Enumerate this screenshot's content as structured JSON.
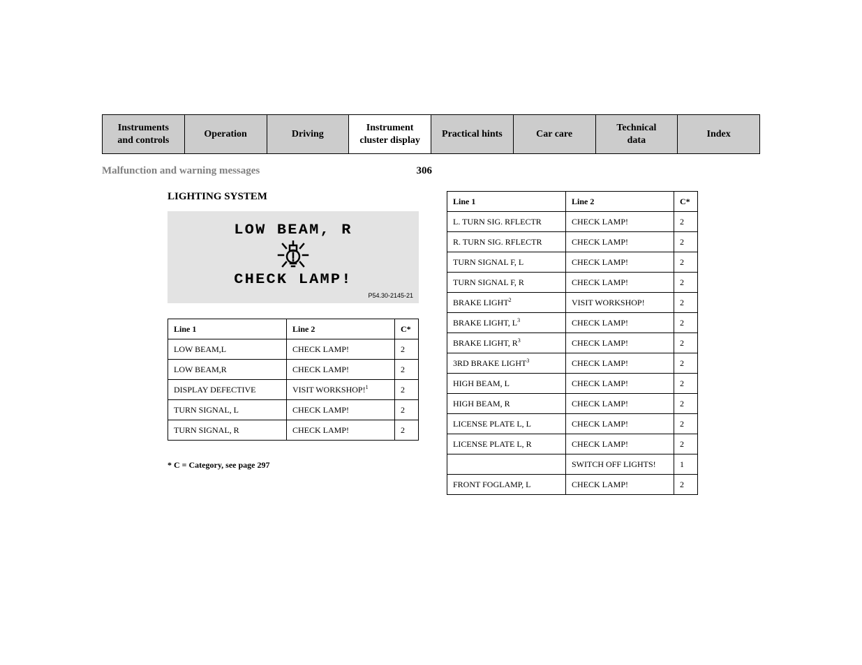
{
  "tabs": [
    {
      "label": "Instruments\nand controls",
      "active": false
    },
    {
      "label": "Operation",
      "active": false
    },
    {
      "label": "Driving",
      "active": false
    },
    {
      "label": "Instrument\ncluster display",
      "active": true
    },
    {
      "label": "Practical hints",
      "active": false
    },
    {
      "label": "Car care",
      "active": false
    },
    {
      "label": "Technical\ndata",
      "active": false
    },
    {
      "label": "Index",
      "active": false
    }
  ],
  "breadcrumb": "Malfunction and warning messages",
  "page_number": "306",
  "section_title": "LIGHTING SYSTEM",
  "display": {
    "line1": "LOW BEAM, R",
    "line2": "CHECK LAMP!",
    "code": "P54.30-2145-21"
  },
  "left_table": {
    "headers": [
      "Line 1",
      "Line 2",
      "C*"
    ],
    "rows": [
      {
        "l1": "LOW BEAM,L",
        "l2": "CHECK LAMP!",
        "sup": "",
        "c": "2"
      },
      {
        "l1": "LOW BEAM,R",
        "l2": "CHECK LAMP!",
        "sup": "",
        "c": "2"
      },
      {
        "l1": "DISPLAY DEFECTIVE",
        "l2": "VISIT WORKSHOP!",
        "sup": "1",
        "c": "2"
      },
      {
        "l1": "TURN SIGNAL, L",
        "l2": "CHECK LAMP!",
        "sup": "",
        "c": "2"
      },
      {
        "l1": "TURN SIGNAL, R",
        "l2": "CHECK LAMP!",
        "sup": "",
        "c": "2"
      }
    ]
  },
  "right_table": {
    "headers": [
      "Line 1",
      "Line 2",
      "C*"
    ],
    "rows": [
      {
        "l1": "L. TURN SIG. RFLECTR",
        "l1sup": "",
        "l2": "CHECK LAMP!",
        "sup": "",
        "c": "2"
      },
      {
        "l1": "R. TURN SIG. RFLECTR",
        "l1sup": "",
        "l2": "CHECK LAMP!",
        "sup": "",
        "c": "2"
      },
      {
        "l1": "TURN SIGNAL F, L",
        "l1sup": "",
        "l2": "CHECK LAMP!",
        "sup": "",
        "c": "2"
      },
      {
        "l1": "TURN SIGNAL F, R",
        "l1sup": "",
        "l2": "CHECK LAMP!",
        "sup": "",
        "c": "2"
      },
      {
        "l1": "BRAKE LIGHT",
        "l1sup": "2",
        "l2": "VISIT WORKSHOP!",
        "sup": "",
        "c": "2"
      },
      {
        "l1": "BRAKE LIGHT, L",
        "l1sup": "3",
        "l2": "CHECK LAMP!",
        "sup": "",
        "c": "2"
      },
      {
        "l1": "BRAKE LIGHT, R",
        "l1sup": "3",
        "l2": "CHECK LAMP!",
        "sup": "",
        "c": "2"
      },
      {
        "l1": "3RD BRAKE LIGHT",
        "l1sup": "3",
        "l2": "CHECK LAMP!",
        "sup": "",
        "c": "2"
      },
      {
        "l1": "HIGH BEAM, L",
        "l1sup": "",
        "l2": "CHECK LAMP!",
        "sup": "",
        "c": "2"
      },
      {
        "l1": "HIGH BEAM, R",
        "l1sup": "",
        "l2": "CHECK LAMP!",
        "sup": "",
        "c": "2"
      },
      {
        "l1": "LICENSE PLATE L, L",
        "l1sup": "",
        "l2": "CHECK LAMP!",
        "sup": "",
        "c": "2"
      },
      {
        "l1": "LICENSE PLATE L, R",
        "l1sup": "",
        "l2": "CHECK LAMP!",
        "sup": "",
        "c": "2"
      },
      {
        "l1": "",
        "l1sup": "",
        "l2": "SWITCH OFF LIGHTS!",
        "sup": "",
        "c": "1"
      },
      {
        "l1": "FRONT FOGLAMP, L",
        "l1sup": "",
        "l2": "CHECK LAMP!",
        "sup": "",
        "c": "2"
      }
    ]
  },
  "footnote": "*   C = Category, see page 297",
  "colors": {
    "tab_inactive_bg": "#cccccc",
    "tab_active_bg": "#ffffff",
    "display_bg": "#e3e3e3",
    "breadcrumb_color": "#808080"
  }
}
